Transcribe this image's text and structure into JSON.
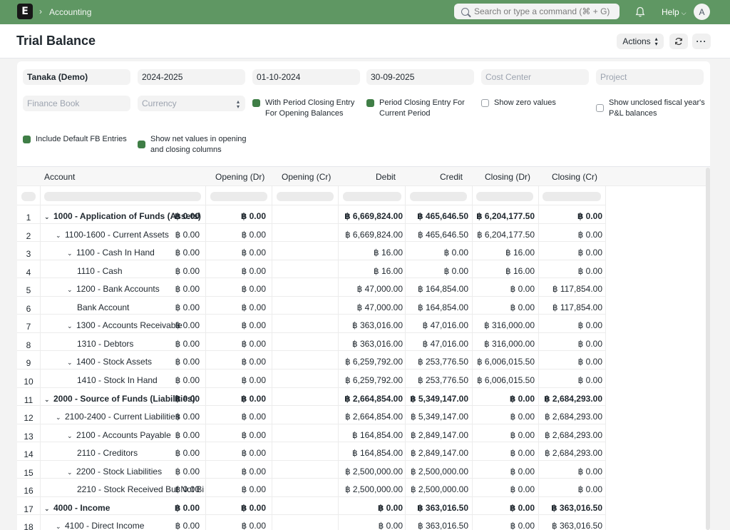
{
  "navbar": {
    "logo": "E",
    "breadcrumb_sep": "›",
    "breadcrumb": "Accounting",
    "search_placeholder": "Search or type a command (⌘ + G)",
    "help_label": "Help",
    "avatar_letter": "A"
  },
  "header": {
    "title": "Trial Balance",
    "actions_label": "Actions",
    "more_label": "···"
  },
  "filters": {
    "company": "Tanaka (Demo)",
    "fiscal_year": "2024-2025",
    "from_date": "01-10-2024",
    "to_date": "30-09-2025",
    "cost_center_placeholder": "Cost Center",
    "project_placeholder": "Project",
    "finance_book_placeholder": "Finance Book",
    "currency_placeholder": "Currency",
    "checkboxes": [
      {
        "label_1": "With Period Closing Entry",
        "label_2": "For Opening Balances",
        "checked": true
      },
      {
        "label_1": "Period Closing Entry For",
        "label_2": "Current Period",
        "checked": true
      },
      {
        "label_1": "Show zero values",
        "label_2": "",
        "checked": false
      },
      {
        "label_1": "Show unclosed fiscal year's",
        "label_2": "P&L balances",
        "checked": false
      },
      {
        "label_1": "Include Default FB Entries",
        "label_2": "",
        "checked": true
      },
      {
        "label_1": "Show net values in opening",
        "label_2": "and closing columns",
        "checked": true
      }
    ]
  },
  "table": {
    "columns": [
      "Account",
      "Opening (Dr)",
      "Opening (Cr)",
      "Debit",
      "Credit",
      "Closing (Dr)",
      "Closing (Cr)"
    ],
    "toggle_icon": "⌄",
    "rows": [
      {
        "n": "1",
        "account": "1000 - Application of Funds (Assets)",
        "level": 0,
        "tog": true,
        "bold": true,
        "od": "฿ 0.00",
        "oc": "฿ 0.00",
        "dr": "฿ 6,669,824.00",
        "cr": "฿ 465,646.50",
        "cd": "฿ 6,204,177.50",
        "cc": "฿ 0.00"
      },
      {
        "n": "2",
        "account": "1100-1600 - Current Assets",
        "level": 1,
        "tog": true,
        "bold": false,
        "od": "฿ 0.00",
        "oc": "฿ 0.00",
        "dr": "฿ 6,669,824.00",
        "cr": "฿ 465,646.50",
        "cd": "฿ 6,204,177.50",
        "cc": "฿ 0.00"
      },
      {
        "n": "3",
        "account": "1100 - Cash In Hand",
        "level": 2,
        "tog": true,
        "bold": false,
        "od": "฿ 0.00",
        "oc": "฿ 0.00",
        "dr": "฿ 16.00",
        "cr": "฿ 0.00",
        "cd": "฿ 16.00",
        "cc": "฿ 0.00"
      },
      {
        "n": "4",
        "account": "1110 - Cash",
        "level": 3,
        "tog": false,
        "bold": false,
        "od": "฿ 0.00",
        "oc": "฿ 0.00",
        "dr": "฿ 16.00",
        "cr": "฿ 0.00",
        "cd": "฿ 16.00",
        "cc": "฿ 0.00"
      },
      {
        "n": "5",
        "account": "1200 - Bank Accounts",
        "level": 2,
        "tog": true,
        "bold": false,
        "od": "฿ 0.00",
        "oc": "฿ 0.00",
        "dr": "฿ 47,000.00",
        "cr": "฿ 164,854.00",
        "cd": "฿ 0.00",
        "cc": "฿ 117,854.00"
      },
      {
        "n": "6",
        "account": "Bank Account",
        "level": 3,
        "tog": false,
        "bold": false,
        "od": "฿ 0.00",
        "oc": "฿ 0.00",
        "dr": "฿ 47,000.00",
        "cr": "฿ 164,854.00",
        "cd": "฿ 0.00",
        "cc": "฿ 117,854.00"
      },
      {
        "n": "7",
        "account": "1300 - Accounts Receivable",
        "level": 2,
        "tog": true,
        "bold": false,
        "od": "฿ 0.00",
        "oc": "฿ 0.00",
        "dr": "฿ 363,016.00",
        "cr": "฿ 47,016.00",
        "cd": "฿ 316,000.00",
        "cc": "฿ 0.00"
      },
      {
        "n": "8",
        "account": "1310 - Debtors",
        "level": 3,
        "tog": false,
        "bold": false,
        "od": "฿ 0.00",
        "oc": "฿ 0.00",
        "dr": "฿ 363,016.00",
        "cr": "฿ 47,016.00",
        "cd": "฿ 316,000.00",
        "cc": "฿ 0.00"
      },
      {
        "n": "9",
        "account": "1400 - Stock Assets",
        "level": 2,
        "tog": true,
        "bold": false,
        "od": "฿ 0.00",
        "oc": "฿ 0.00",
        "dr": "฿ 6,259,792.00",
        "cr": "฿ 253,776.50",
        "cd": "฿ 6,006,015.50",
        "cc": "฿ 0.00"
      },
      {
        "n": "10",
        "account": "1410 - Stock In Hand",
        "level": 3,
        "tog": false,
        "bold": false,
        "od": "฿ 0.00",
        "oc": "฿ 0.00",
        "dr": "฿ 6,259,792.00",
        "cr": "฿ 253,776.50",
        "cd": "฿ 6,006,015.50",
        "cc": "฿ 0.00"
      },
      {
        "n": "11",
        "account": "2000 - Source of Funds (Liabilities)",
        "level": 0,
        "tog": true,
        "bold": true,
        "od": "฿ 0.00",
        "oc": "฿ 0.00",
        "dr": "฿ 2,664,854.00",
        "cr": "฿ 5,349,147.00",
        "cd": "฿ 0.00",
        "cc": "฿ 2,684,293.00"
      },
      {
        "n": "12",
        "account": "2100-2400 - Current Liabilities",
        "level": 1,
        "tog": true,
        "bold": false,
        "od": "฿ 0.00",
        "oc": "฿ 0.00",
        "dr": "฿ 2,664,854.00",
        "cr": "฿ 5,349,147.00",
        "cd": "฿ 0.00",
        "cc": "฿ 2,684,293.00"
      },
      {
        "n": "13",
        "account": "2100 - Accounts Payable",
        "level": 2,
        "tog": true,
        "bold": false,
        "od": "฿ 0.00",
        "oc": "฿ 0.00",
        "dr": "฿ 164,854.00",
        "cr": "฿ 2,849,147.00",
        "cd": "฿ 0.00",
        "cc": "฿ 2,684,293.00"
      },
      {
        "n": "14",
        "account": "2110 - Creditors",
        "level": 3,
        "tog": false,
        "bold": false,
        "od": "฿ 0.00",
        "oc": "฿ 0.00",
        "dr": "฿ 164,854.00",
        "cr": "฿ 2,849,147.00",
        "cd": "฿ 0.00",
        "cc": "฿ 2,684,293.00"
      },
      {
        "n": "15",
        "account": "2200 - Stock Liabilities",
        "level": 2,
        "tog": true,
        "bold": false,
        "od": "฿ 0.00",
        "oc": "฿ 0.00",
        "dr": "฿ 2,500,000.00",
        "cr": "฿ 2,500,000.00",
        "cd": "฿ 0.00",
        "cc": "฿ 0.00"
      },
      {
        "n": "16",
        "account": "2210 - Stock Received But Not Bil",
        "level": 3,
        "tog": false,
        "bold": false,
        "od": "฿ 0.00",
        "oc": "฿ 0.00",
        "dr": "฿ 2,500,000.00",
        "cr": "฿ 2,500,000.00",
        "cd": "฿ 0.00",
        "cc": "฿ 0.00"
      },
      {
        "n": "17",
        "account": "4000 - Income",
        "level": 0,
        "tog": true,
        "bold": true,
        "od": "฿ 0.00",
        "oc": "฿ 0.00",
        "dr": "฿ 0.00",
        "cr": "฿ 363,016.50",
        "cd": "฿ 0.00",
        "cc": "฿ 363,016.50"
      },
      {
        "n": "18",
        "account": "4100 - Direct Income",
        "level": 1,
        "tog": true,
        "bold": false,
        "od": "฿ 0.00",
        "oc": "฿ 0.00",
        "dr": "฿ 0.00",
        "cr": "฿ 363,016.50",
        "cd": "฿ 0.00",
        "cc": "฿ 363,016.50"
      }
    ]
  }
}
